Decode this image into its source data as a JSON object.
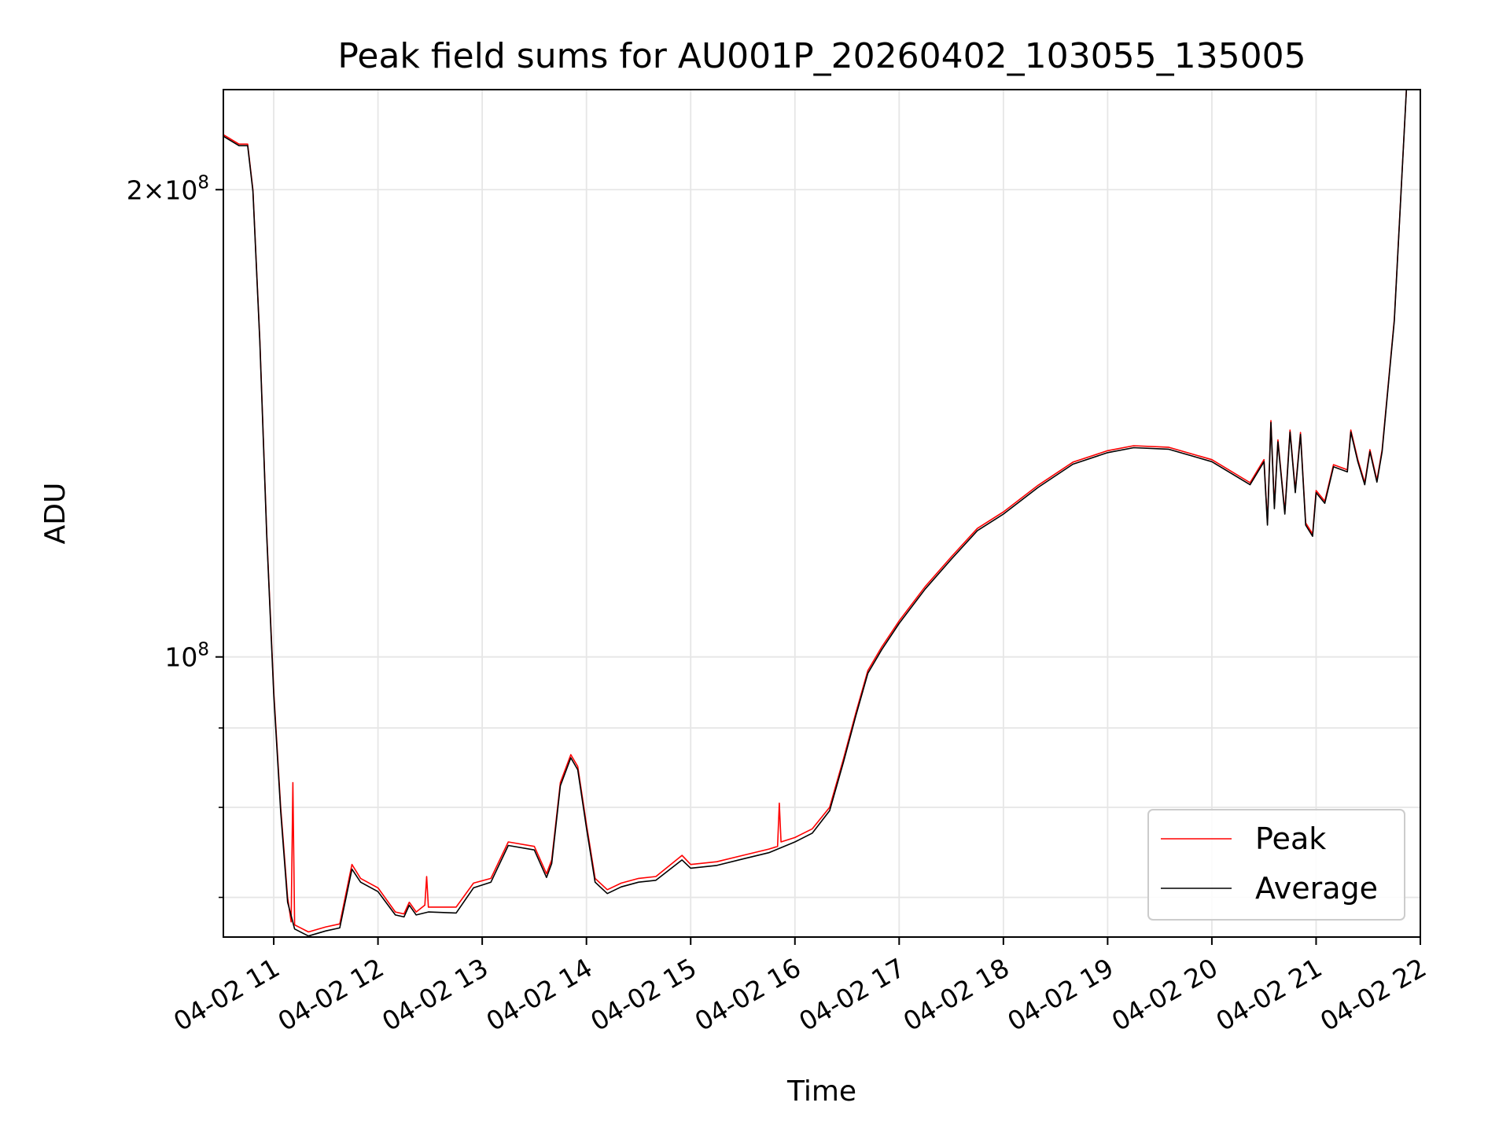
{
  "chart_data": {
    "type": "line",
    "title": "Peak field sums for AU001P_20260402_103055_135005",
    "xlabel": "Time",
    "ylabel": "ADU",
    "yscale": "log",
    "grid": true,
    "legend_position": "lower-right",
    "x_ticks": [
      "04-02 11",
      "04-02 12",
      "04-02 13",
      "04-02 14",
      "04-02 15",
      "04-02 16",
      "04-02 17",
      "04-02 18",
      "04-02 19",
      "04-02 20",
      "04-02 21",
      "04-02 22"
    ],
    "y_ticks": [
      {
        "value": 200000000,
        "base": "2×10",
        "exp": "8"
      },
      {
        "value": 100000000,
        "base": "10",
        "exp": "8"
      }
    ],
    "xlim": [
      "04-02 10:31",
      "04-02 22:00"
    ],
    "ylim": [
      66000000,
      232000000
    ],
    "series": [
      {
        "name": "Peak",
        "color": "#ff0000",
        "points": [
          [
            "04-02 10:31",
            217000000
          ],
          [
            "04-02 10:40",
            214000000
          ],
          [
            "04-02 10:45",
            214000000
          ],
          [
            "04-02 10:48",
            200000000
          ],
          [
            "04-02 10:52",
            160000000
          ],
          [
            "04-02 10:56",
            120000000
          ],
          [
            "04-02 11:00",
            95000000
          ],
          [
            "04-02 11:04",
            80000000
          ],
          [
            "04-02 11:08",
            70000000
          ],
          [
            "04-02 11:10",
            67500000
          ],
          [
            "04-02 11:11",
            83000000
          ],
          [
            "04-02 11:12",
            67200000
          ],
          [
            "04-02 11:20",
            66500000
          ],
          [
            "04-02 11:30",
            67000000
          ],
          [
            "04-02 11:38",
            67300000
          ],
          [
            "04-02 11:45",
            73500000
          ],
          [
            "04-02 11:50",
            72000000
          ],
          [
            "04-02 12:00",
            71000000
          ],
          [
            "04-02 12:10",
            68500000
          ],
          [
            "04-02 12:15",
            68300000
          ],
          [
            "04-02 12:18",
            69500000
          ],
          [
            "04-02 12:22",
            68500000
          ],
          [
            "04-02 12:27",
            69200000
          ],
          [
            "04-02 12:28",
            72200000
          ],
          [
            "04-02 12:29",
            69000000
          ],
          [
            "04-02 12:45",
            69000000
          ],
          [
            "04-02 12:55",
            71500000
          ],
          [
            "04-02 13:05",
            72000000
          ],
          [
            "04-02 13:15",
            76000000
          ],
          [
            "04-02 13:30",
            75500000
          ],
          [
            "04-02 13:37",
            72500000
          ],
          [
            "04-02 13:40",
            74000000
          ],
          [
            "04-02 13:45",
            83000000
          ],
          [
            "04-02 13:51",
            86500000
          ],
          [
            "04-02 13:55",
            85000000
          ],
          [
            "04-02 14:00",
            78000000
          ],
          [
            "04-02 14:05",
            72000000
          ],
          [
            "04-02 14:12",
            70800000
          ],
          [
            "04-02 14:20",
            71500000
          ],
          [
            "04-02 14:30",
            72000000
          ],
          [
            "04-02 14:40",
            72200000
          ],
          [
            "04-02 14:55",
            74500000
          ],
          [
            "04-02 15:00",
            73500000
          ],
          [
            "04-02 15:15",
            73800000
          ],
          [
            "04-02 15:30",
            74500000
          ],
          [
            "04-02 15:45",
            75200000
          ],
          [
            "04-02 15:50",
            75500000
          ],
          [
            "04-02 15:51",
            80500000
          ],
          [
            "04-02 15:52",
            76000000
          ],
          [
            "04-02 16:00",
            76500000
          ],
          [
            "04-02 16:10",
            77500000
          ],
          [
            "04-02 16:20",
            80000000
          ],
          [
            "04-02 16:28",
            86000000
          ],
          [
            "04-02 16:35",
            92000000
          ],
          [
            "04-02 16:42",
            98000000
          ],
          [
            "04-02 16:50",
            101500000
          ],
          [
            "04-02 17:00",
            105500000
          ],
          [
            "04-02 17:15",
            111000000
          ],
          [
            "04-02 17:30",
            116000000
          ],
          [
            "04-02 17:45",
            121000000
          ],
          [
            "04-02 18:00",
            124000000
          ],
          [
            "04-02 18:20",
            129000000
          ],
          [
            "04-02 18:40",
            133500000
          ],
          [
            "04-02 19:00",
            135800000
          ],
          [
            "04-02 19:15",
            136800000
          ],
          [
            "04-02 19:35",
            136500000
          ],
          [
            "04-02 20:00",
            134000000
          ],
          [
            "04-02 20:22",
            129500000
          ],
          [
            "04-02 20:30",
            134000000
          ],
          [
            "04-02 20:32",
            122000000
          ],
          [
            "04-02 20:34",
            142000000
          ],
          [
            "04-02 20:36",
            125000000
          ],
          [
            "04-02 20:38",
            138000000
          ],
          [
            "04-02 20:42",
            124000000
          ],
          [
            "04-02 20:45",
            140000000
          ],
          [
            "04-02 20:48",
            128000000
          ],
          [
            "04-02 20:51",
            139500000
          ],
          [
            "04-02 20:54",
            122000000
          ],
          [
            "04-02 20:58",
            120000000
          ],
          [
            "04-02 21:00",
            128000000
          ],
          [
            "04-02 21:05",
            126000000
          ],
          [
            "04-02 21:10",
            133000000
          ],
          [
            "04-02 21:18",
            132000000
          ],
          [
            "04-02 21:20",
            140000000
          ],
          [
            "04-02 21:24",
            134000000
          ],
          [
            "04-02 21:28",
            129500000
          ],
          [
            "04-02 21:31",
            136000000
          ],
          [
            "04-02 21:35",
            130000000
          ],
          [
            "04-02 21:38",
            136000000
          ],
          [
            "04-02 21:45",
            165000000
          ],
          [
            "04-02 21:52",
            232000000
          ]
        ]
      },
      {
        "name": "Average",
        "color": "#000000",
        "points": [
          [
            "04-02 10:31",
            216500000
          ],
          [
            "04-02 10:40",
            213500000
          ],
          [
            "04-02 10:45",
            213500000
          ],
          [
            "04-02 10:48",
            199500000
          ],
          [
            "04-02 10:52",
            159500000
          ],
          [
            "04-02 10:56",
            119500000
          ],
          [
            "04-02 11:00",
            94500000
          ],
          [
            "04-02 11:04",
            79500000
          ],
          [
            "04-02 11:08",
            69500000
          ],
          [
            "04-02 11:12",
            66800000
          ],
          [
            "04-02 11:20",
            66100000
          ],
          [
            "04-02 11:30",
            66600000
          ],
          [
            "04-02 11:38",
            66900000
          ],
          [
            "04-02 11:45",
            73000000
          ],
          [
            "04-02 11:50",
            71600000
          ],
          [
            "04-02 12:00",
            70600000
          ],
          [
            "04-02 12:10",
            68200000
          ],
          [
            "04-02 12:15",
            68000000
          ],
          [
            "04-02 12:18",
            69200000
          ],
          [
            "04-02 12:22",
            68200000
          ],
          [
            "04-02 12:29",
            68500000
          ],
          [
            "04-02 12:45",
            68400000
          ],
          [
            "04-02 12:55",
            71000000
          ],
          [
            "04-02 13:05",
            71600000
          ],
          [
            "04-02 13:15",
            75600000
          ],
          [
            "04-02 13:30",
            75100000
          ],
          [
            "04-02 13:37",
            72100000
          ],
          [
            "04-02 13:40",
            73600000
          ],
          [
            "04-02 13:45",
            82600000
          ],
          [
            "04-02 13:51",
            86100000
          ],
          [
            "04-02 13:55",
            84600000
          ],
          [
            "04-02 14:00",
            77600000
          ],
          [
            "04-02 14:05",
            71600000
          ],
          [
            "04-02 14:12",
            70400000
          ],
          [
            "04-02 14:20",
            71100000
          ],
          [
            "04-02 14:30",
            71600000
          ],
          [
            "04-02 14:40",
            71800000
          ],
          [
            "04-02 14:55",
            74000000
          ],
          [
            "04-02 15:00",
            73100000
          ],
          [
            "04-02 15:15",
            73400000
          ],
          [
            "04-02 15:30",
            74100000
          ],
          [
            "04-02 15:45",
            74800000
          ],
          [
            "04-02 16:00",
            76000000
          ],
          [
            "04-02 16:10",
            77000000
          ],
          [
            "04-02 16:20",
            79600000
          ],
          [
            "04-02 16:28",
            85600000
          ],
          [
            "04-02 16:35",
            91600000
          ],
          [
            "04-02 16:42",
            97600000
          ],
          [
            "04-02 16:50",
            101100000
          ],
          [
            "04-02 17:00",
            105100000
          ],
          [
            "04-02 17:15",
            110600000
          ],
          [
            "04-02 17:30",
            115600000
          ],
          [
            "04-02 17:45",
            120600000
          ],
          [
            "04-02 18:00",
            123600000
          ],
          [
            "04-02 18:20",
            128600000
          ],
          [
            "04-02 18:40",
            133100000
          ],
          [
            "04-02 19:00",
            135400000
          ],
          [
            "04-02 19:15",
            136400000
          ],
          [
            "04-02 19:35",
            136100000
          ],
          [
            "04-02 20:00",
            133600000
          ],
          [
            "04-02 20:22",
            129100000
          ],
          [
            "04-02 20:30",
            133600000
          ],
          [
            "04-02 20:32",
            121600000
          ],
          [
            "04-02 20:34",
            141600000
          ],
          [
            "04-02 20:36",
            124600000
          ],
          [
            "04-02 20:38",
            137600000
          ],
          [
            "04-02 20:42",
            123600000
          ],
          [
            "04-02 20:45",
            139600000
          ],
          [
            "04-02 20:48",
            127600000
          ],
          [
            "04-02 20:51",
            139100000
          ],
          [
            "04-02 20:54",
            121600000
          ],
          [
            "04-02 20:58",
            119600000
          ],
          [
            "04-02 21:00",
            127600000
          ],
          [
            "04-02 21:05",
            125600000
          ],
          [
            "04-02 21:10",
            132600000
          ],
          [
            "04-02 21:18",
            131600000
          ],
          [
            "04-02 21:20",
            139600000
          ],
          [
            "04-02 21:24",
            133600000
          ],
          [
            "04-02 21:28",
            129100000
          ],
          [
            "04-02 21:31",
            135600000
          ],
          [
            "04-02 21:35",
            129600000
          ],
          [
            "04-02 21:38",
            135600000
          ],
          [
            "04-02 21:45",
            164600000
          ],
          [
            "04-02 21:52",
            232000000
          ]
        ]
      }
    ]
  }
}
